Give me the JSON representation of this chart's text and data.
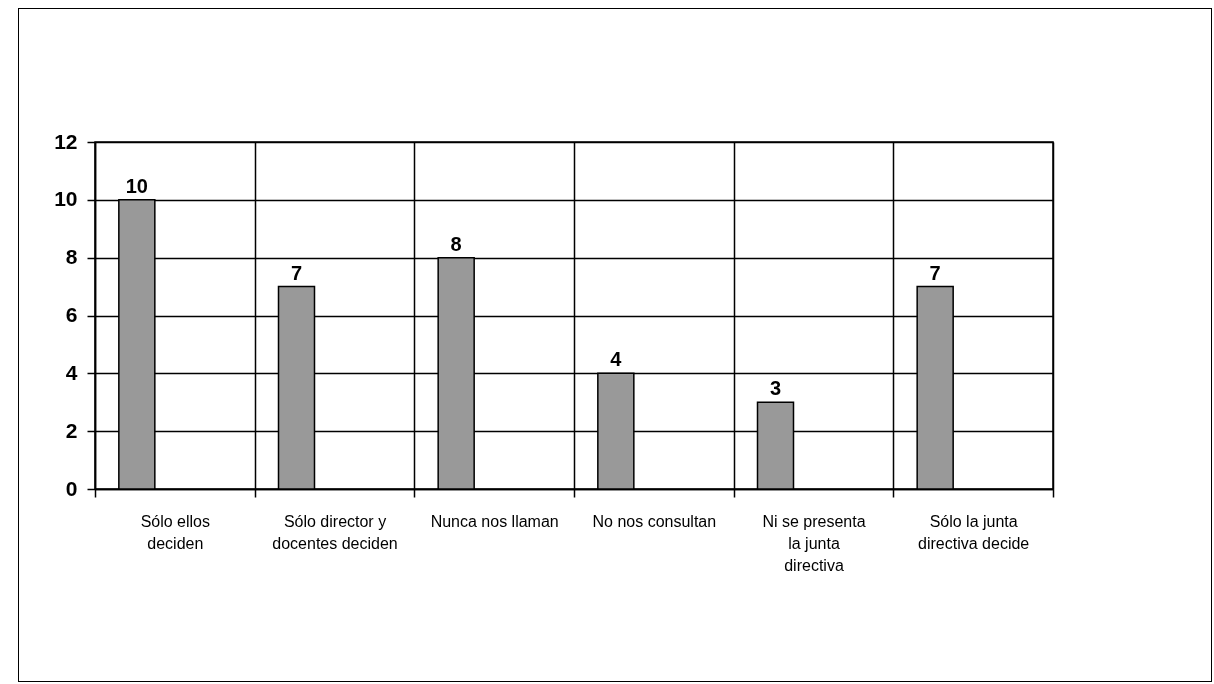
{
  "chart_data": {
    "type": "bar",
    "categories": [
      "Sólo ellos deciden",
      "Sólo director y docentes deciden",
      "Nunca nos llaman",
      "No nos consultan",
      "Ni se presenta la junta directiva",
      "Sólo la junta directiva decide"
    ],
    "values": [
      10,
      7,
      8,
      4,
      3,
      7
    ],
    "color": "#999999",
    "ylim": [
      0,
      12
    ],
    "yticks": [
      0,
      2,
      4,
      6,
      8,
      10,
      12
    ],
    "grid": true,
    "data_labels": true
  }
}
